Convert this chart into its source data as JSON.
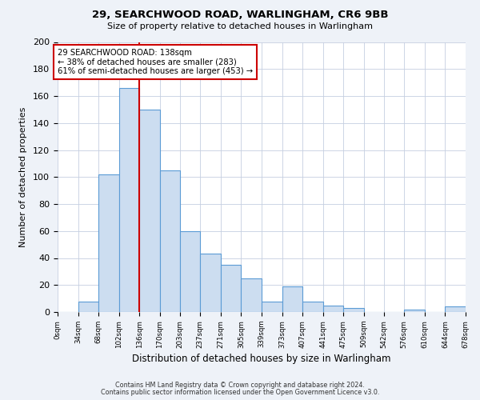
{
  "title1": "29, SEARCHWOOD ROAD, WARLINGHAM, CR6 9BB",
  "title2": "Size of property relative to detached houses in Warlingham",
  "xlabel": "Distribution of detached houses by size in Warlingham",
  "ylabel": "Number of detached properties",
  "bin_edges": [
    0,
    34,
    68,
    102,
    136,
    170,
    203,
    237,
    271,
    305,
    339,
    373,
    407,
    441,
    475,
    509,
    542,
    576,
    610,
    644,
    678
  ],
  "bar_heights": [
    0,
    8,
    102,
    166,
    150,
    105,
    60,
    43,
    35,
    25,
    8,
    19,
    8,
    5,
    3,
    0,
    0,
    2,
    0,
    4
  ],
  "xtick_labels": [
    "0sqm",
    "34sqm",
    "68sqm",
    "102sqm",
    "136sqm",
    "170sqm",
    "203sqm",
    "237sqm",
    "271sqm",
    "305sqm",
    "339sqm",
    "373sqm",
    "407sqm",
    "441sqm",
    "475sqm",
    "509sqm",
    "542sqm",
    "576sqm",
    "610sqm",
    "644sqm",
    "678sqm"
  ],
  "ylim": [
    0,
    200
  ],
  "yticks": [
    0,
    20,
    40,
    60,
    80,
    100,
    120,
    140,
    160,
    180,
    200
  ],
  "bar_color": "#ccddf0",
  "bar_edge_color": "#5b9bd5",
  "vline_x": 136,
  "vline_color": "#cc0000",
  "annotation_text": "29 SEARCHWOOD ROAD: 138sqm\n← 38% of detached houses are smaller (283)\n61% of semi-detached houses are larger (453) →",
  "annotation_box_edge": "#cc0000",
  "footer1": "Contains HM Land Registry data © Crown copyright and database right 2024.",
  "footer2": "Contains public sector information licensed under the Open Government Licence v3.0.",
  "bg_color": "#eef2f8",
  "plot_bg_color": "#ffffff"
}
